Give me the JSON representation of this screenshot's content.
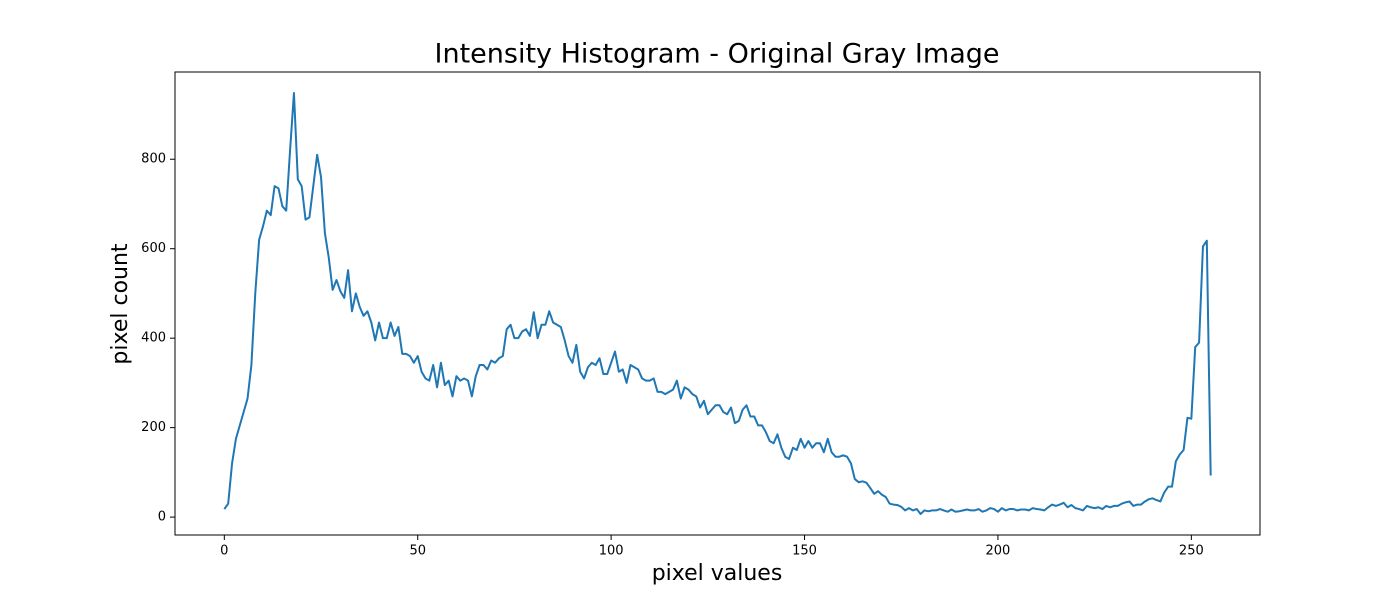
{
  "chart_data": {
    "type": "line",
    "title": "Intensity Histogram - Original Gray Image",
    "x_label": "pixel values",
    "y_label": "pixel count",
    "x": [
      0,
      1,
      2,
      3,
      4,
      5,
      6,
      7,
      8,
      9,
      10,
      11,
      12,
      13,
      14,
      15,
      16,
      17,
      18,
      19,
      20,
      21,
      22,
      23,
      24,
      25,
      26,
      27,
      28,
      29,
      30,
      31,
      32,
      33,
      34,
      35,
      36,
      37,
      38,
      39,
      40,
      41,
      42,
      43,
      44,
      45,
      46,
      47,
      48,
      49,
      50,
      51,
      52,
      53,
      54,
      55,
      56,
      57,
      58,
      59,
      60,
      61,
      62,
      63,
      64,
      65,
      66,
      67,
      68,
      69,
      70,
      71,
      72,
      73,
      74,
      75,
      76,
      77,
      78,
      79,
      80,
      81,
      82,
      83,
      84,
      85,
      86,
      87,
      88,
      89,
      90,
      91,
      92,
      93,
      94,
      95,
      96,
      97,
      98,
      99,
      100,
      101,
      102,
      103,
      104,
      105,
      106,
      107,
      108,
      109,
      110,
      111,
      112,
      113,
      114,
      115,
      116,
      117,
      118,
      119,
      120,
      121,
      122,
      123,
      124,
      125,
      126,
      127,
      128,
      129,
      130,
      131,
      132,
      133,
      134,
      135,
      136,
      137,
      138,
      139,
      140,
      141,
      142,
      143,
      144,
      145,
      146,
      147,
      148,
      149,
      150,
      151,
      152,
      153,
      154,
      155,
      156,
      157,
      158,
      159,
      160,
      161,
      162,
      163,
      164,
      165,
      166,
      167,
      168,
      169,
      170,
      171,
      172,
      173,
      174,
      175,
      176,
      177,
      178,
      179,
      180,
      181,
      182,
      183,
      184,
      185,
      186,
      187,
      188,
      189,
      190,
      191,
      192,
      193,
      194,
      195,
      196,
      197,
      198,
      199,
      200,
      201,
      202,
      203,
      204,
      205,
      206,
      207,
      208,
      209,
      210,
      211,
      212,
      213,
      214,
      215,
      216,
      217,
      218,
      219,
      220,
      221,
      222,
      223,
      224,
      225,
      226,
      227,
      228,
      229,
      230,
      231,
      232,
      233,
      234,
      235,
      236,
      237,
      238,
      239,
      240,
      241,
      242,
      243,
      244,
      245,
      246,
      247,
      248,
      249,
      250,
      251,
      252,
      253,
      254,
      255
    ],
    "series": [
      {
        "color": "#1f77b4",
        "values": [
          18,
          30,
          120,
          175,
          205,
          235,
          265,
          340,
          500,
          620,
          650,
          685,
          675,
          740,
          735,
          695,
          685,
          820,
          948,
          755,
          740,
          665,
          670,
          740,
          810,
          760,
          635,
          580,
          508,
          530,
          505,
          490,
          552,
          460,
          500,
          470,
          450,
          460,
          435,
          395,
          435,
          400,
          400,
          435,
          405,
          425,
          365,
          365,
          360,
          345,
          360,
          325,
          310,
          305,
          340,
          290,
          345,
          295,
          305,
          270,
          315,
          305,
          310,
          305,
          270,
          315,
          340,
          340,
          330,
          350,
          345,
          355,
          360,
          420,
          430,
          400,
          400,
          415,
          420,
          405,
          458,
          400,
          430,
          430,
          460,
          435,
          430,
          425,
          395,
          360,
          345,
          385,
          325,
          310,
          335,
          345,
          340,
          355,
          320,
          320,
          345,
          370,
          325,
          330,
          300,
          340,
          335,
          330,
          310,
          305,
          305,
          310,
          280,
          280,
          275,
          280,
          285,
          305,
          265,
          290,
          285,
          275,
          270,
          245,
          260,
          230,
          240,
          250,
          250,
          235,
          230,
          245,
          210,
          215,
          240,
          250,
          225,
          225,
          205,
          205,
          190,
          170,
          165,
          185,
          155,
          135,
          130,
          155,
          150,
          175,
          155,
          170,
          155,
          165,
          165,
          145,
          175,
          145,
          135,
          135,
          138,
          135,
          120,
          85,
          78,
          80,
          77,
          65,
          52,
          58,
          50,
          45,
          30,
          28,
          27,
          23,
          15,
          20,
          15,
          18,
          7,
          15,
          13,
          15,
          15,
          18,
          15,
          12,
          17,
          12,
          13,
          15,
          17,
          15,
          15,
          18,
          12,
          15,
          20,
          18,
          12,
          20,
          15,
          18,
          18,
          15,
          17,
          17,
          15,
          20,
          18,
          17,
          15,
          22,
          28,
          25,
          28,
          32,
          22,
          27,
          20,
          18,
          15,
          25,
          22,
          20,
          22,
          18,
          25,
          22,
          25,
          25,
          30,
          33,
          35,
          25,
          28,
          28,
          35,
          40,
          42,
          38,
          35,
          55,
          68,
          68,
          125,
          140,
          150,
          222,
          220,
          380,
          390,
          605,
          618,
          93
        ]
      }
    ],
    "xlim": [
      -12.75,
      267.75
    ],
    "ylim": [
      -40,
      995
    ],
    "xticks": [
      0,
      50,
      100,
      150,
      200,
      250
    ],
    "yticks": [
      0,
      200,
      400,
      600,
      800
    ],
    "grid": false
  }
}
